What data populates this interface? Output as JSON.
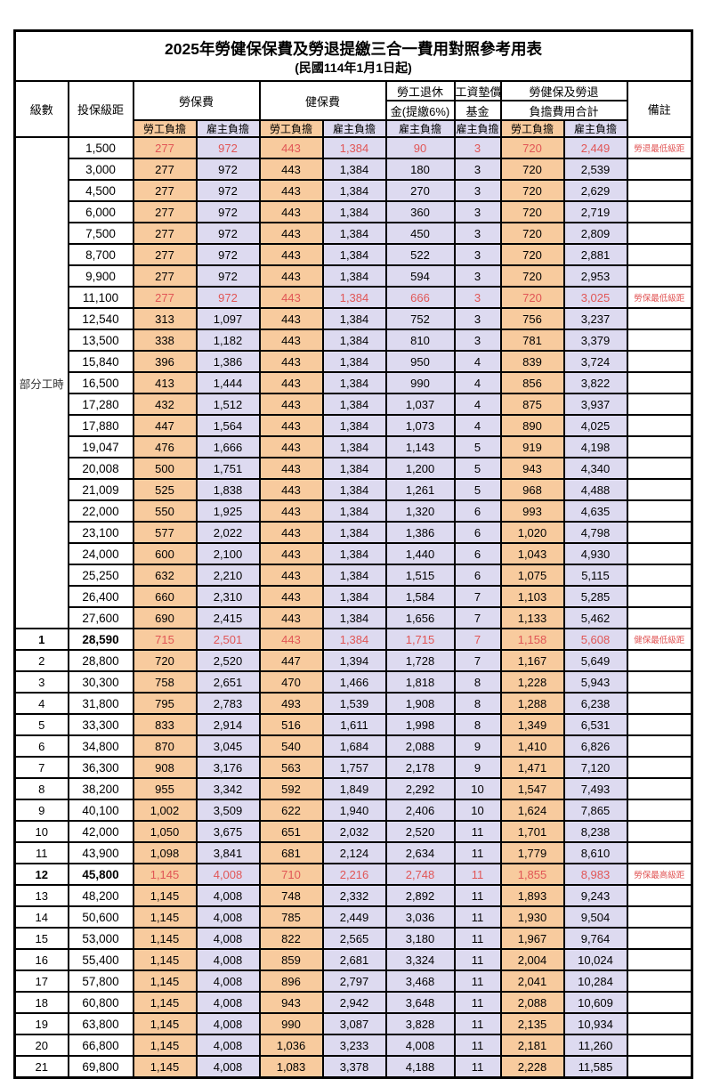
{
  "title": {
    "main": "2025年勞健保保費及勞退提繳三合一費用對照參考用表",
    "sub": "(民國114年1月1日起)"
  },
  "header": {
    "level_label": "級數",
    "bracket_label": "投保級距",
    "labor_fee": "勞保費",
    "health_fee": "健保費",
    "pension_line1": "勞工退休",
    "pension_line2": "金(提繳6%)",
    "wage_fund_line1": "工資墊償",
    "wage_fund_line2": "基金",
    "total_line1": "勞健保及勞退",
    "total_line2": "負擔費用合計",
    "remark_label": "備註",
    "employee_label": "勞工負擔",
    "employer_label": "雇主負擔"
  },
  "part_time_label": "部分工時",
  "part_time_rowspan": 23,
  "colors": {
    "employee-bg": "#f8cb9e",
    "employer-bg": "#dddaf0",
    "highlight-red": "#e15656"
  },
  "rows": [
    {
      "level": "",
      "bracket": "1,500",
      "values": [
        "277",
        "972",
        "443",
        "1,384",
        "90",
        "3",
        "720",
        "2,449"
      ],
      "remark": "勞退最低級距",
      "red": true,
      "em": false
    },
    {
      "level": "",
      "bracket": "3,000",
      "values": [
        "277",
        "972",
        "443",
        "1,384",
        "180",
        "3",
        "720",
        "2,539"
      ],
      "remark": "",
      "red": false,
      "em": false
    },
    {
      "level": "",
      "bracket": "4,500",
      "values": [
        "277",
        "972",
        "443",
        "1,384",
        "270",
        "3",
        "720",
        "2,629"
      ],
      "remark": "",
      "red": false,
      "em": false
    },
    {
      "level": "",
      "bracket": "6,000",
      "values": [
        "277",
        "972",
        "443",
        "1,384",
        "360",
        "3",
        "720",
        "2,719"
      ],
      "remark": "",
      "red": false,
      "em": false
    },
    {
      "level": "",
      "bracket": "7,500",
      "values": [
        "277",
        "972",
        "443",
        "1,384",
        "450",
        "3",
        "720",
        "2,809"
      ],
      "remark": "",
      "red": false,
      "em": false
    },
    {
      "level": "",
      "bracket": "8,700",
      "values": [
        "277",
        "972",
        "443",
        "1,384",
        "522",
        "3",
        "720",
        "2,881"
      ],
      "remark": "",
      "red": false,
      "em": false
    },
    {
      "level": "",
      "bracket": "9,900",
      "values": [
        "277",
        "972",
        "443",
        "1,384",
        "594",
        "3",
        "720",
        "2,953"
      ],
      "remark": "",
      "red": false,
      "em": false
    },
    {
      "level": "",
      "bracket": "11,100",
      "values": [
        "277",
        "972",
        "443",
        "1,384",
        "666",
        "3",
        "720",
        "3,025"
      ],
      "remark": "勞保最低級距",
      "red": true,
      "em": false
    },
    {
      "level": "",
      "bracket": "12,540",
      "values": [
        "313",
        "1,097",
        "443",
        "1,384",
        "752",
        "3",
        "756",
        "3,237"
      ],
      "remark": "",
      "red": false,
      "em": false
    },
    {
      "level": "",
      "bracket": "13,500",
      "values": [
        "338",
        "1,182",
        "443",
        "1,384",
        "810",
        "3",
        "781",
        "3,379"
      ],
      "remark": "",
      "red": false,
      "em": false
    },
    {
      "level": "",
      "bracket": "15,840",
      "values": [
        "396",
        "1,386",
        "443",
        "1,384",
        "950",
        "4",
        "839",
        "3,724"
      ],
      "remark": "",
      "red": false,
      "em": false
    },
    {
      "level": "",
      "bracket": "16,500",
      "values": [
        "413",
        "1,444",
        "443",
        "1,384",
        "990",
        "4",
        "856",
        "3,822"
      ],
      "remark": "",
      "red": false,
      "em": false
    },
    {
      "level": "",
      "bracket": "17,280",
      "values": [
        "432",
        "1,512",
        "443",
        "1,384",
        "1,037",
        "4",
        "875",
        "3,937"
      ],
      "remark": "",
      "red": false,
      "em": false
    },
    {
      "level": "",
      "bracket": "17,880",
      "values": [
        "447",
        "1,564",
        "443",
        "1,384",
        "1,073",
        "4",
        "890",
        "4,025"
      ],
      "remark": "",
      "red": false,
      "em": false
    },
    {
      "level": "",
      "bracket": "19,047",
      "values": [
        "476",
        "1,666",
        "443",
        "1,384",
        "1,143",
        "5",
        "919",
        "4,198"
      ],
      "remark": "",
      "red": false,
      "em": false
    },
    {
      "level": "",
      "bracket": "20,008",
      "values": [
        "500",
        "1,751",
        "443",
        "1,384",
        "1,200",
        "5",
        "943",
        "4,340"
      ],
      "remark": "",
      "red": false,
      "em": false
    },
    {
      "level": "",
      "bracket": "21,009",
      "values": [
        "525",
        "1,838",
        "443",
        "1,384",
        "1,261",
        "5",
        "968",
        "4,488"
      ],
      "remark": "",
      "red": false,
      "em": false
    },
    {
      "level": "",
      "bracket": "22,000",
      "values": [
        "550",
        "1,925",
        "443",
        "1,384",
        "1,320",
        "6",
        "993",
        "4,635"
      ],
      "remark": "",
      "red": false,
      "em": false
    },
    {
      "level": "",
      "bracket": "23,100",
      "values": [
        "577",
        "2,022",
        "443",
        "1,384",
        "1,386",
        "6",
        "1,020",
        "4,798"
      ],
      "remark": "",
      "red": false,
      "em": false
    },
    {
      "level": "",
      "bracket": "24,000",
      "values": [
        "600",
        "2,100",
        "443",
        "1,384",
        "1,440",
        "6",
        "1,043",
        "4,930"
      ],
      "remark": "",
      "red": false,
      "em": false
    },
    {
      "level": "",
      "bracket": "25,250",
      "values": [
        "632",
        "2,210",
        "443",
        "1,384",
        "1,515",
        "6",
        "1,075",
        "5,115"
      ],
      "remark": "",
      "red": false,
      "em": false
    },
    {
      "level": "",
      "bracket": "26,400",
      "values": [
        "660",
        "2,310",
        "443",
        "1,384",
        "1,584",
        "7",
        "1,103",
        "5,285"
      ],
      "remark": "",
      "red": false,
      "em": false
    },
    {
      "level": "",
      "bracket": "27,600",
      "values": [
        "690",
        "2,415",
        "443",
        "1,384",
        "1,656",
        "7",
        "1,133",
        "5,462"
      ],
      "remark": "",
      "red": false,
      "em": false
    },
    {
      "level": "1",
      "bracket": "28,590",
      "values": [
        "715",
        "2,501",
        "443",
        "1,384",
        "1,715",
        "7",
        "1,158",
        "5,608"
      ],
      "remark": "健保最低級距",
      "red": true,
      "em": true
    },
    {
      "level": "2",
      "bracket": "28,800",
      "values": [
        "720",
        "2,520",
        "447",
        "1,394",
        "1,728",
        "7",
        "1,167",
        "5,649"
      ],
      "remark": "",
      "red": false,
      "em": false
    },
    {
      "level": "3",
      "bracket": "30,300",
      "values": [
        "758",
        "2,651",
        "470",
        "1,466",
        "1,818",
        "8",
        "1,228",
        "5,943"
      ],
      "remark": "",
      "red": false,
      "em": false
    },
    {
      "level": "4",
      "bracket": "31,800",
      "values": [
        "795",
        "2,783",
        "493",
        "1,539",
        "1,908",
        "8",
        "1,288",
        "6,238"
      ],
      "remark": "",
      "red": false,
      "em": false
    },
    {
      "level": "5",
      "bracket": "33,300",
      "values": [
        "833",
        "2,914",
        "516",
        "1,611",
        "1,998",
        "8",
        "1,349",
        "6,531"
      ],
      "remark": "",
      "red": false,
      "em": false
    },
    {
      "level": "6",
      "bracket": "34,800",
      "values": [
        "870",
        "3,045",
        "540",
        "1,684",
        "2,088",
        "9",
        "1,410",
        "6,826"
      ],
      "remark": "",
      "red": false,
      "em": false
    },
    {
      "level": "7",
      "bracket": "36,300",
      "values": [
        "908",
        "3,176",
        "563",
        "1,757",
        "2,178",
        "9",
        "1,471",
        "7,120"
      ],
      "remark": "",
      "red": false,
      "em": false
    },
    {
      "level": "8",
      "bracket": "38,200",
      "values": [
        "955",
        "3,342",
        "592",
        "1,849",
        "2,292",
        "10",
        "1,547",
        "7,493"
      ],
      "remark": "",
      "red": false,
      "em": false
    },
    {
      "level": "9",
      "bracket": "40,100",
      "values": [
        "1,002",
        "3,509",
        "622",
        "1,940",
        "2,406",
        "10",
        "1,624",
        "7,865"
      ],
      "remark": "",
      "red": false,
      "em": false
    },
    {
      "level": "10",
      "bracket": "42,000",
      "values": [
        "1,050",
        "3,675",
        "651",
        "2,032",
        "2,520",
        "11",
        "1,701",
        "8,238"
      ],
      "remark": "",
      "red": false,
      "em": false
    },
    {
      "level": "11",
      "bracket": "43,900",
      "values": [
        "1,098",
        "3,841",
        "681",
        "2,124",
        "2,634",
        "11",
        "1,779",
        "8,610"
      ],
      "remark": "",
      "red": false,
      "em": false
    },
    {
      "level": "12",
      "bracket": "45,800",
      "values": [
        "1,145",
        "4,008",
        "710",
        "2,216",
        "2,748",
        "11",
        "1,855",
        "8,983"
      ],
      "remark": "勞保最高級距",
      "red": true,
      "em": true
    },
    {
      "level": "13",
      "bracket": "48,200",
      "values": [
        "1,145",
        "4,008",
        "748",
        "2,332",
        "2,892",
        "11",
        "1,893",
        "9,243"
      ],
      "remark": "",
      "red": false,
      "em": false
    },
    {
      "level": "14",
      "bracket": "50,600",
      "values": [
        "1,145",
        "4,008",
        "785",
        "2,449",
        "3,036",
        "11",
        "1,930",
        "9,504"
      ],
      "remark": "",
      "red": false,
      "em": false
    },
    {
      "level": "15",
      "bracket": "53,000",
      "values": [
        "1,145",
        "4,008",
        "822",
        "2,565",
        "3,180",
        "11",
        "1,967",
        "9,764"
      ],
      "remark": "",
      "red": false,
      "em": false
    },
    {
      "level": "16",
      "bracket": "55,400",
      "values": [
        "1,145",
        "4,008",
        "859",
        "2,681",
        "3,324",
        "11",
        "2,004",
        "10,024"
      ],
      "remark": "",
      "red": false,
      "em": false
    },
    {
      "level": "17",
      "bracket": "57,800",
      "values": [
        "1,145",
        "4,008",
        "896",
        "2,797",
        "3,468",
        "11",
        "2,041",
        "10,284"
      ],
      "remark": "",
      "red": false,
      "em": false
    },
    {
      "level": "18",
      "bracket": "60,800",
      "values": [
        "1,145",
        "4,008",
        "943",
        "2,942",
        "3,648",
        "11",
        "2,088",
        "10,609"
      ],
      "remark": "",
      "red": false,
      "em": false
    },
    {
      "level": "19",
      "bracket": "63,800",
      "values": [
        "1,145",
        "4,008",
        "990",
        "3,087",
        "3,828",
        "11",
        "2,135",
        "10,934"
      ],
      "remark": "",
      "red": false,
      "em": false
    },
    {
      "level": "20",
      "bracket": "66,800",
      "values": [
        "1,145",
        "4,008",
        "1,036",
        "3,233",
        "4,008",
        "11",
        "2,181",
        "11,260"
      ],
      "remark": "",
      "red": false,
      "em": false
    },
    {
      "level": "21",
      "bracket": "69,800",
      "values": [
        "1,145",
        "4,008",
        "1,083",
        "3,378",
        "4,188",
        "11",
        "2,228",
        "11,585"
      ],
      "remark": "",
      "red": false,
      "em": false
    }
  ],
  "column_cell_types": [
    "emp",
    "er",
    "emp",
    "er",
    "er",
    "er",
    "emp",
    "er"
  ]
}
